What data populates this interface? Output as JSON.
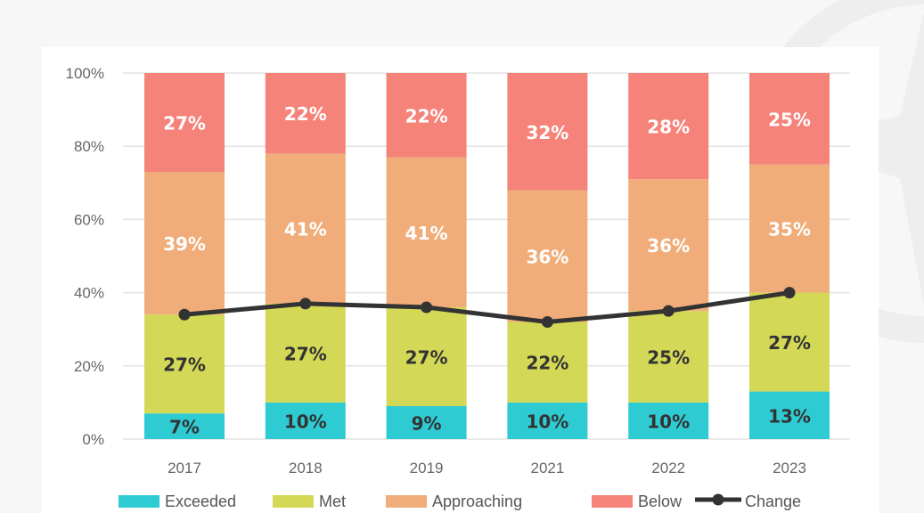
{
  "chart_data": {
    "type": "bar",
    "stacked": true,
    "categories": [
      "2017",
      "2018",
      "2019",
      "2021",
      "2022",
      "2023"
    ],
    "series": [
      {
        "name": "Exceeded",
        "color": "#2ecbd3",
        "label_color": "#333333",
        "values": [
          7,
          10,
          9,
          10,
          10,
          13
        ]
      },
      {
        "name": "Met",
        "color": "#d3d856",
        "label_color": "#333333",
        "values": [
          27,
          27,
          27,
          22,
          25,
          27
        ]
      },
      {
        "name": "Approaching",
        "color": "#f0ad7a",
        "label_color": "#ffffff",
        "values": [
          39,
          41,
          41,
          36,
          36,
          35
        ]
      },
      {
        "name": "Below",
        "color": "#f5837a",
        "label_color": "#ffffff",
        "values": [
          27,
          22,
          22,
          32,
          28,
          25
        ]
      }
    ],
    "line_series": {
      "name": "Change",
      "color": "#333333",
      "values": [
        34,
        37,
        36,
        32,
        35,
        40
      ]
    },
    "ylim": [
      0,
      100
    ],
    "yticks": [
      "0%",
      "20%",
      "40%",
      "60%",
      "80%",
      "100%"
    ],
    "grid": true,
    "legend": "bottom"
  }
}
